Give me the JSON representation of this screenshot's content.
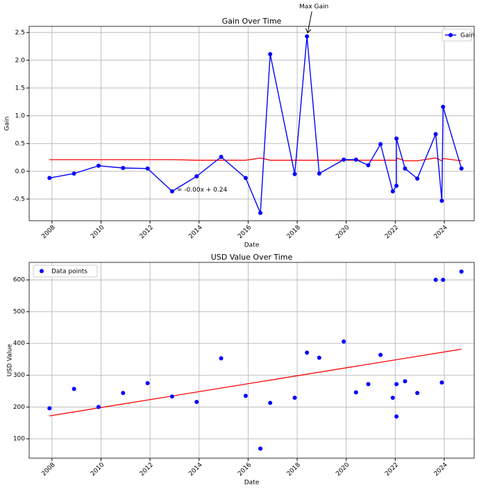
{
  "chart_data": [
    {
      "type": "line",
      "title": "Gain Over Time",
      "x_label": "Date",
      "y_label": "Gain",
      "x": [
        2007.9,
        2008.9,
        2009.9,
        2010.9,
        2011.9,
        2012.9,
        2013.9,
        2014.9,
        2015.9,
        2016.5,
        2016.9,
        2017.9,
        2018.4,
        2018.9,
        2019.9,
        2020.4,
        2020.9,
        2021.4,
        2021.9,
        2022.05,
        2022.05,
        2022.4,
        2022.9,
        2023.65,
        2023.9,
        2023.95,
        2024.7
      ],
      "series": [
        {
          "name": "Gain",
          "color": "#0000ff",
          "values": [
            -0.12,
            -0.04,
            0.1,
            0.06,
            0.05,
            -0.36,
            -0.09,
            0.26,
            -0.12,
            -0.75,
            2.11,
            -0.05,
            2.43,
            -0.04,
            0.21,
            0.21,
            0.11,
            0.49,
            -0.36,
            -0.26,
            0.59,
            0.05,
            -0.13,
            0.67,
            -0.53,
            1.16,
            0.05
          ]
        }
      ],
      "trend": {
        "color": "#ff0000",
        "values": [
          0.21,
          0.21,
          0.21,
          0.21,
          0.21,
          0.21,
          0.2,
          0.2,
          0.2,
          0.24,
          0.2,
          0.2,
          0.2,
          0.2,
          0.2,
          0.2,
          0.2,
          0.2,
          0.2,
          0.2,
          0.24,
          0.19,
          0.19,
          0.24,
          0.19,
          0.23,
          0.19
        ]
      },
      "annotation": "Max Gain",
      "equation": "= -0.00x + 0.24",
      "xlim": [
        2007.07,
        2025.22
      ],
      "xticks": [
        2008,
        2010,
        2012,
        2014,
        2016,
        2018,
        2020,
        2022,
        2024
      ],
      "ylim": [
        -0.89,
        2.61
      ],
      "yticks": [
        -0.5,
        {
          "value": 0,
          "label": "0.0"
        },
        0.5,
        {
          "value": 1,
          "label": "1.0"
        },
        1.5,
        {
          "value": 2,
          "label": "2.0"
        },
        2.5
      ],
      "grid": true,
      "legend": "upper right"
    },
    {
      "type": "scatter",
      "title": "USD Value Over Time",
      "x_label": "Date",
      "y_label": "USD Value",
      "x": [
        2007.9,
        2008.9,
        2009.9,
        2010.9,
        2011.9,
        2012.9,
        2013.9,
        2014.9,
        2015.9,
        2016.5,
        2016.9,
        2017.9,
        2018.4,
        2018.9,
        2019.9,
        2020.4,
        2020.9,
        2021.4,
        2021.9,
        2022.05,
        2022.05,
        2022.4,
        2022.9,
        2023.65,
        2023.9,
        2023.95,
        2024.7
      ],
      "series": [
        {
          "name": "Data points",
          "color": "#0000ff",
          "values": [
            196,
            257,
            200,
            244,
            275,
            233,
            216,
            353,
            235,
            69,
            213,
            229,
            371,
            355,
            406,
            246,
            272,
            364,
            229,
            272,
            170,
            281,
            244,
            600,
            277,
            600,
            626
          ]
        }
      ],
      "trend": {
        "color": "#ff0000",
        "x": [
          2007.9,
          2024.7
        ],
        "values": [
          172,
          382
        ]
      },
      "xlim": [
        2007.07,
        2025.22
      ],
      "xticks": [
        2008,
        2010,
        2012,
        2014,
        2016,
        2018,
        2020,
        2022,
        2024
      ],
      "ylim": [
        39,
        655
      ],
      "yticks": [
        100,
        200,
        300,
        400,
        500,
        600
      ],
      "grid": true,
      "legend": "upper left"
    }
  ]
}
